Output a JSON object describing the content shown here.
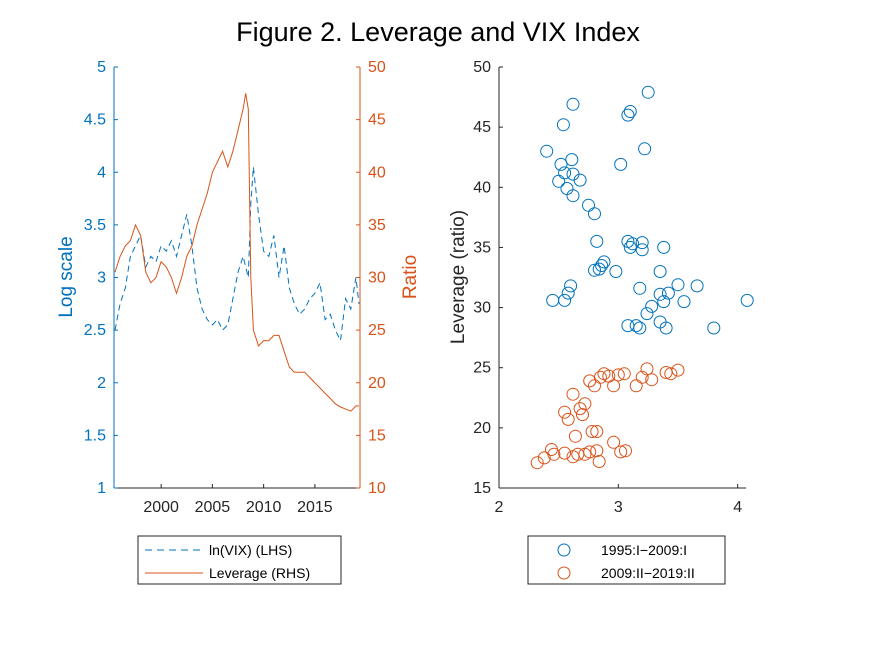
{
  "title": "Figure 2. Leverage and VIX Index",
  "colors": {
    "blue": "#0072BD",
    "orange": "#D95319",
    "axis": "#262626"
  },
  "chart_data": [
    {
      "type": "line",
      "yaxis_left": {
        "label": "Log scale",
        "ylim": [
          1,
          5
        ],
        "ticks": [
          1,
          1.5,
          2,
          2.5,
          3,
          3.5,
          4,
          4.5,
          5
        ],
        "tick_labels": [
          "1",
          "1.5",
          "2",
          "2.5",
          "3",
          "3.5",
          "4",
          "4.5",
          "5"
        ],
        "color": "#0072BD"
      },
      "yaxis_right": {
        "label": "Ratio",
        "ylim": [
          10,
          50
        ],
        "ticks": [
          10,
          15,
          20,
          25,
          30,
          35,
          40,
          45,
          50
        ],
        "tick_labels": [
          "10",
          "15",
          "20",
          "25",
          "30",
          "35",
          "40",
          "45",
          "50"
        ],
        "color": "#D95319"
      },
      "xlim": [
        1995.4,
        2019.4
      ],
      "xticks": [
        2000,
        2005,
        2010,
        2015
      ],
      "xtick_labels": [
        "2000",
        "2005",
        "2010",
        "2015"
      ],
      "legend": "below",
      "series": [
        {
          "name": "ln(VIX) (LHS)",
          "axis": "left",
          "style": "dashed",
          "color": "#0072BD",
          "x": [
            1995.5,
            1996,
            1996.5,
            1997,
            1997.5,
            1998,
            1998.5,
            1999,
            1999.5,
            2000,
            2000.5,
            2001,
            2001.5,
            2002,
            2002.5,
            2003,
            2003.5,
            2004,
            2004.5,
            2005,
            2005.5,
            2006,
            2006.5,
            2007,
            2007.5,
            2008,
            2008.5,
            2008.75,
            2009,
            2009.5,
            2010,
            2010.5,
            2011,
            2011.5,
            2012,
            2012.5,
            2013,
            2013.5,
            2014,
            2014.5,
            2015,
            2015.5,
            2016,
            2016.5,
            2017,
            2017.5,
            2018,
            2018.5,
            2019,
            2019.3
          ],
          "y": [
            2.5,
            2.75,
            2.9,
            3.2,
            3.3,
            3.4,
            3.1,
            3.2,
            3.15,
            3.3,
            3.25,
            3.35,
            3.2,
            3.4,
            3.6,
            3.3,
            2.9,
            2.7,
            2.6,
            2.55,
            2.6,
            2.5,
            2.55,
            2.8,
            3.05,
            3.2,
            3.0,
            3.7,
            4.05,
            3.6,
            3.25,
            3.2,
            3.4,
            3.0,
            3.3,
            2.9,
            2.75,
            2.65,
            2.7,
            2.8,
            2.85,
            2.95,
            2.6,
            2.65,
            2.5,
            2.4,
            2.8,
            2.7,
            3.0,
            2.75
          ]
        },
        {
          "name": "Leverage (RHS)",
          "axis": "right",
          "style": "solid",
          "color": "#D95319",
          "x": [
            1995.5,
            1996,
            1996.5,
            1997,
            1997.5,
            1998,
            1998.5,
            1999,
            1999.5,
            2000,
            2000.5,
            2001,
            2001.5,
            2002,
            2002.5,
            2003,
            2003.5,
            2004,
            2004.5,
            2005,
            2005.5,
            2006,
            2006.5,
            2007,
            2007.5,
            2008,
            2008.25,
            2008.5,
            2008.75,
            2009,
            2009.5,
            2010,
            2010.5,
            2011,
            2011.5,
            2012,
            2012.5,
            2013,
            2013.5,
            2014,
            2014.5,
            2015,
            2015.5,
            2016,
            2016.5,
            2017,
            2017.5,
            2018,
            2018.5,
            2019,
            2019.3
          ],
          "y": [
            30.5,
            32,
            33,
            33.5,
            35,
            34,
            30.5,
            29.5,
            30,
            31.5,
            31,
            30,
            28.5,
            30,
            32,
            33,
            35,
            36.5,
            38,
            40,
            41,
            42,
            40.5,
            42,
            44,
            46,
            47.5,
            46,
            30,
            25,
            23.5,
            24,
            24,
            24.5,
            24.5,
            23,
            21.5,
            21,
            21,
            21,
            20.5,
            20,
            19.5,
            19,
            18.5,
            18,
            17.7,
            17.5,
            17.3,
            17.8,
            17.8
          ]
        }
      ]
    },
    {
      "type": "scatter",
      "xlim": [
        2,
        4.07
      ],
      "ylim": [
        15,
        50
      ],
      "xticks": [
        2,
        3,
        4
      ],
      "xtick_labels": [
        "2",
        "3",
        "4"
      ],
      "yticks": [
        15,
        20,
        25,
        30,
        35,
        40,
        45,
        50
      ],
      "ytick_labels": [
        "15",
        "20",
        "25",
        "30",
        "35",
        "40",
        "45",
        "50"
      ],
      "xlabel": "",
      "ylabel": "Leverage (ratio)",
      "legend": "below",
      "series": [
        {
          "name": "1995:I−2009:I",
          "marker": "circle",
          "color": "#0072BD",
          "points": [
            [
              2.62,
              46.9
            ],
            [
              3.25,
              47.9
            ],
            [
              3.1,
              46.3
            ],
            [
              3.08,
              46.0
            ],
            [
              2.54,
              45.2
            ],
            [
              2.4,
              43.0
            ],
            [
              3.22,
              43.2
            ],
            [
              2.52,
              41.9
            ],
            [
              2.61,
              42.3
            ],
            [
              3.02,
              41.9
            ],
            [
              2.55,
              41.2
            ],
            [
              2.62,
              41.1
            ],
            [
              2.5,
              40.5
            ],
            [
              2.68,
              40.6
            ],
            [
              2.57,
              39.9
            ],
            [
              2.62,
              39.3
            ],
            [
              2.75,
              38.5
            ],
            [
              2.8,
              37.8
            ],
            [
              2.82,
              35.5
            ],
            [
              3.08,
              35.5
            ],
            [
              3.12,
              35.3
            ],
            [
              3.2,
              35.4
            ],
            [
              3.1,
              35.0
            ],
            [
              3.38,
              35.0
            ],
            [
              3.2,
              34.8
            ],
            [
              2.88,
              33.8
            ],
            [
              2.84,
              33.2
            ],
            [
              2.86,
              33.5
            ],
            [
              2.98,
              33.0
            ],
            [
              3.35,
              33.0
            ],
            [
              2.8,
              33.1
            ],
            [
              2.6,
              31.8
            ],
            [
              2.58,
              31.2
            ],
            [
              2.45,
              30.6
            ],
            [
              2.55,
              30.6
            ],
            [
              3.18,
              31.6
            ],
            [
              3.5,
              31.9
            ],
            [
              3.66,
              31.8
            ],
            [
              3.35,
              31.1
            ],
            [
              3.42,
              31.2
            ],
            [
              3.38,
              30.5
            ],
            [
              3.28,
              30.1
            ],
            [
              3.24,
              29.5
            ],
            [
              3.55,
              30.5
            ],
            [
              4.08,
              30.6
            ],
            [
              3.08,
              28.5
            ],
            [
              3.15,
              28.5
            ],
            [
              3.18,
              28.3
            ],
            [
              3.35,
              28.8
            ],
            [
              3.4,
              28.3
            ],
            [
              3.8,
              28.3
            ]
          ]
        },
        {
          "name": "2009:II−2019:II",
          "marker": "circle",
          "color": "#D95319",
          "points": [
            [
              2.32,
              17.1
            ],
            [
              2.38,
              17.5
            ],
            [
              2.44,
              18.2
            ],
            [
              2.46,
              17.8
            ],
            [
              2.55,
              17.9
            ],
            [
              2.62,
              17.6
            ],
            [
              2.66,
              17.8
            ],
            [
              2.72,
              17.8
            ],
            [
              2.76,
              18.0
            ],
            [
              2.82,
              18.1
            ],
            [
              2.84,
              17.2
            ],
            [
              2.96,
              18.8
            ],
            [
              3.02,
              18.0
            ],
            [
              3.06,
              18.1
            ],
            [
              2.55,
              21.3
            ],
            [
              2.58,
              20.7
            ],
            [
              2.64,
              19.3
            ],
            [
              2.68,
              21.6
            ],
            [
              2.7,
              21.1
            ],
            [
              2.72,
              22.0
            ],
            [
              2.62,
              22.8
            ],
            [
              2.78,
              19.7
            ],
            [
              2.82,
              19.7
            ],
            [
              2.76,
              23.9
            ],
            [
              2.8,
              23.5
            ],
            [
              2.85,
              24.2
            ],
            [
              2.88,
              24.5
            ],
            [
              2.92,
              24.3
            ],
            [
              2.96,
              23.5
            ],
            [
              3.0,
              24.4
            ],
            [
              3.05,
              24.5
            ],
            [
              3.15,
              23.5
            ],
            [
              3.2,
              24.2
            ],
            [
              3.24,
              24.9
            ],
            [
              3.28,
              24.0
            ],
            [
              3.4,
              24.6
            ],
            [
              3.44,
              24.5
            ],
            [
              3.5,
              24.8
            ]
          ]
        }
      ]
    }
  ]
}
